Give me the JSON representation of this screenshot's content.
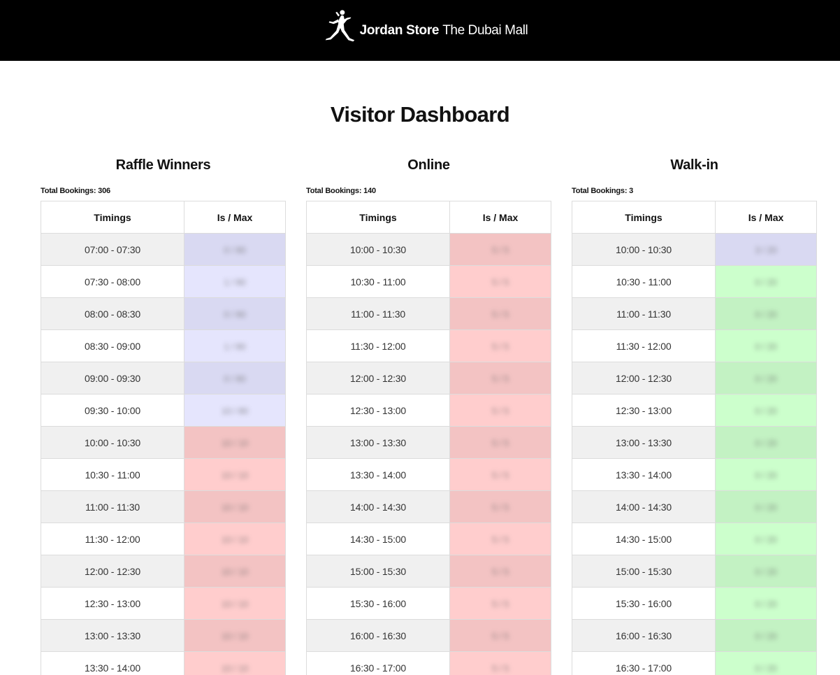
{
  "header": {
    "brand_name": "Jordan Store",
    "location": "The Dubai Mall",
    "logo_icon": "jumpman-logo-icon"
  },
  "page_title": "Visitor Dashboard",
  "table_headers": {
    "timings": "Timings",
    "ratio": "Is / Max"
  },
  "columns": [
    {
      "title": "Raffle Winners",
      "total": "Total Bookings: 306",
      "rows": [
        {
          "time": "07:00 - 07:30",
          "ratio": "0 / 80",
          "status": "purple"
        },
        {
          "time": "07:30 - 08:00",
          "ratio": "1 / 80",
          "status": "purple"
        },
        {
          "time": "08:00 - 08:30",
          "ratio": "0 / 80",
          "status": "purple"
        },
        {
          "time": "08:30 - 09:00",
          "ratio": "1 / 80",
          "status": "purple"
        },
        {
          "time": "09:00 - 09:30",
          "ratio": "0 / 80",
          "status": "purple"
        },
        {
          "time": "09:30 - 10:00",
          "ratio": "10 / 80",
          "status": "purple"
        },
        {
          "time": "10:00 - 10:30",
          "ratio": "10 / 10",
          "status": "red"
        },
        {
          "time": "10:30 - 11:00",
          "ratio": "10 / 10",
          "status": "red"
        },
        {
          "time": "11:00 - 11:30",
          "ratio": "10 / 10",
          "status": "red"
        },
        {
          "time": "11:30 - 12:00",
          "ratio": "10 / 10",
          "status": "red"
        },
        {
          "time": "12:00 - 12:30",
          "ratio": "10 / 10",
          "status": "red"
        },
        {
          "time": "12:30 - 13:00",
          "ratio": "10 / 10",
          "status": "red"
        },
        {
          "time": "13:00 - 13:30",
          "ratio": "10 / 10",
          "status": "red"
        },
        {
          "time": "13:30 - 14:00",
          "ratio": "10 / 10",
          "status": "red"
        }
      ]
    },
    {
      "title": "Online",
      "total": "Total Bookings: 140",
      "rows": [
        {
          "time": "10:00 - 10:30",
          "ratio": "5 / 5",
          "status": "red"
        },
        {
          "time": "10:30 - 11:00",
          "ratio": "5 / 5",
          "status": "red"
        },
        {
          "time": "11:00 - 11:30",
          "ratio": "5 / 5",
          "status": "red"
        },
        {
          "time": "11:30 - 12:00",
          "ratio": "5 / 5",
          "status": "red"
        },
        {
          "time": "12:00 - 12:30",
          "ratio": "5 / 5",
          "status": "red"
        },
        {
          "time": "12:30 - 13:00",
          "ratio": "5 / 5",
          "status": "red"
        },
        {
          "time": "13:00 - 13:30",
          "ratio": "5 / 5",
          "status": "red"
        },
        {
          "time": "13:30 - 14:00",
          "ratio": "5 / 5",
          "status": "red"
        },
        {
          "time": "14:00 - 14:30",
          "ratio": "5 / 5",
          "status": "red"
        },
        {
          "time": "14:30 - 15:00",
          "ratio": "5 / 5",
          "status": "red"
        },
        {
          "time": "15:00 - 15:30",
          "ratio": "5 / 5",
          "status": "red"
        },
        {
          "time": "15:30 - 16:00",
          "ratio": "5 / 5",
          "status": "red"
        },
        {
          "time": "16:00 - 16:30",
          "ratio": "5 / 5",
          "status": "red"
        },
        {
          "time": "16:30 - 17:00",
          "ratio": "5 / 5",
          "status": "red"
        }
      ]
    },
    {
      "title": "Walk-in",
      "total": "Total Bookings: 3",
      "rows": [
        {
          "time": "10:00 - 10:30",
          "ratio": "3 / 20",
          "status": "purple"
        },
        {
          "time": "10:30 - 11:00",
          "ratio": "0 / 20",
          "status": "green"
        },
        {
          "time": "11:00 - 11:30",
          "ratio": "0 / 20",
          "status": "green"
        },
        {
          "time": "11:30 - 12:00",
          "ratio": "0 / 20",
          "status": "green"
        },
        {
          "time": "12:00 - 12:30",
          "ratio": "0 / 20",
          "status": "green"
        },
        {
          "time": "12:30 - 13:00",
          "ratio": "0 / 20",
          "status": "green"
        },
        {
          "time": "13:00 - 13:30",
          "ratio": "0 / 20",
          "status": "green"
        },
        {
          "time": "13:30 - 14:00",
          "ratio": "0 / 20",
          "status": "green"
        },
        {
          "time": "14:00 - 14:30",
          "ratio": "0 / 20",
          "status": "green"
        },
        {
          "time": "14:30 - 15:00",
          "ratio": "0 / 20",
          "status": "green"
        },
        {
          "time": "15:00 - 15:30",
          "ratio": "0 / 20",
          "status": "green"
        },
        {
          "time": "15:30 - 16:00",
          "ratio": "0 / 20",
          "status": "green"
        },
        {
          "time": "16:00 - 16:30",
          "ratio": "0 / 20",
          "status": "green"
        },
        {
          "time": "16:30 - 17:00",
          "ratio": "0 / 20",
          "status": "green"
        }
      ]
    }
  ],
  "status_colors": {
    "purple": "#e5e5fd",
    "red": "#ffcdcd",
    "green": "#ccffcc"
  }
}
